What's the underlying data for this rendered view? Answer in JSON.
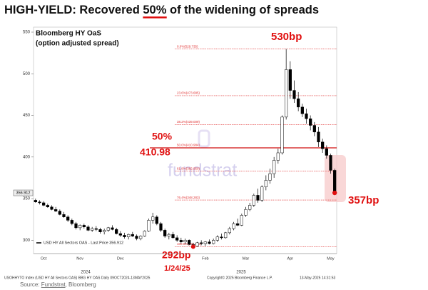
{
  "chart_data": {
    "type": "candlestick",
    "title": [
      "HIGH-YIELD: Recovered ",
      "50%",
      " of the widening of spreads"
    ],
    "subtitle": [
      "Bloomberg HY OaS",
      "(option adjusted spread)"
    ],
    "categories": [
      null,
      null,
      "Oct",
      null,
      null,
      null,
      null,
      null,
      null,
      null,
      null,
      "Nov",
      null,
      null,
      null,
      null,
      null,
      null,
      null,
      null,
      null,
      "Dec",
      null,
      null,
      null,
      null,
      null,
      null,
      null,
      null,
      null,
      null,
      null,
      null,
      null,
      null,
      null,
      null,
      null,
      null,
      null,
      null,
      "Feb",
      null,
      null,
      null,
      null,
      null,
      null,
      null,
      null,
      null,
      "Mar",
      null,
      null,
      null,
      null,
      null,
      null,
      null,
      null,
      null,
      null,
      "Apr",
      null,
      null,
      null,
      null,
      null,
      null,
      null,
      null,
      null,
      "May",
      null
    ],
    "year_labels": [
      "2024",
      "2025"
    ],
    "ohlc": [
      [
        348,
        350,
        345,
        346
      ],
      [
        346,
        348,
        343,
        345
      ],
      [
        345,
        347,
        341,
        342
      ],
      [
        342,
        344,
        339,
        340
      ],
      [
        340,
        342,
        336,
        337
      ],
      [
        337,
        340,
        334,
        335
      ],
      [
        335,
        337,
        330,
        331
      ],
      [
        331,
        334,
        327,
        328
      ],
      [
        328,
        330,
        322,
        324
      ],
      [
        324,
        326,
        318,
        320
      ],
      [
        320,
        322,
        313,
        315
      ],
      [
        315,
        319,
        312,
        318
      ],
      [
        318,
        320,
        314,
        316
      ],
      [
        316,
        318,
        311,
        312
      ],
      [
        312,
        316,
        310,
        314
      ],
      [
        314,
        317,
        311,
        313
      ],
      [
        313,
        315,
        308,
        310
      ],
      [
        310,
        314,
        307,
        312
      ],
      [
        312,
        316,
        310,
        315
      ],
      [
        315,
        318,
        312,
        313
      ],
      [
        313,
        315,
        307,
        308
      ],
      [
        308,
        311,
        304,
        306
      ],
      [
        306,
        309,
        302,
        304
      ],
      [
        304,
        308,
        301,
        307
      ],
      [
        307,
        310,
        304,
        305
      ],
      [
        305,
        307,
        300,
        302
      ],
      [
        302,
        306,
        300,
        305
      ],
      [
        305,
        312,
        304,
        311
      ],
      [
        311,
        326,
        310,
        324
      ],
      [
        324,
        333,
        320,
        328
      ],
      [
        328,
        330,
        318,
        320
      ],
      [
        320,
        322,
        310,
        312
      ],
      [
        312,
        314,
        303,
        305
      ],
      [
        305,
        309,
        301,
        307
      ],
      [
        307,
        310,
        302,
        303
      ],
      [
        303,
        306,
        298,
        300
      ],
      [
        300,
        303,
        296,
        298
      ],
      [
        298,
        302,
        295,
        300
      ],
      [
        300,
        301,
        294,
        295
      ],
      [
        295,
        297,
        292.233,
        293
      ],
      [
        293,
        298,
        292,
        297
      ],
      [
        297,
        300,
        294,
        296
      ],
      [
        296,
        299,
        293,
        298
      ],
      [
        298,
        301,
        295,
        296
      ],
      [
        296,
        302,
        295,
        300
      ],
      [
        300,
        306,
        298,
        304
      ],
      [
        304,
        308,
        301,
        303
      ],
      [
        303,
        310,
        302,
        309
      ],
      [
        309,
        316,
        307,
        314
      ],
      [
        314,
        322,
        312,
        320
      ],
      [
        320,
        326,
        317,
        318
      ],
      [
        318,
        332,
        317,
        330
      ],
      [
        330,
        340,
        328,
        337
      ],
      [
        337,
        345,
        335,
        342
      ],
      [
        342,
        356,
        340,
        354
      ],
      [
        354,
        362,
        345,
        348
      ],
      [
        348,
        366,
        346,
        364
      ],
      [
        364,
        378,
        360,
        372
      ],
      [
        372,
        386,
        368,
        380
      ],
      [
        380,
        400,
        375,
        396
      ],
      [
        396,
        410,
        392,
        405
      ],
      [
        405,
        450,
        403,
        448
      ],
      [
        448,
        529.735,
        445,
        505
      ],
      [
        505,
        515,
        470,
        480
      ],
      [
        480,
        492,
        465,
        470
      ],
      [
        470,
        478,
        455,
        460
      ],
      [
        460,
        464,
        448,
        452
      ],
      [
        452,
        458,
        440,
        446
      ],
      [
        446,
        450,
        432,
        438
      ],
      [
        438,
        442,
        425,
        430
      ],
      [
        430,
        436,
        412,
        418
      ],
      [
        418,
        422,
        405,
        410
      ],
      [
        410,
        414,
        398,
        402
      ],
      [
        402,
        404,
        380,
        384
      ],
      [
        384,
        386,
        355,
        356.912
      ]
    ],
    "up_color": "#ffffff",
    "down_color": "#000000",
    "ylim": [
      284,
      556
    ],
    "yticks": [
      300,
      350,
      400,
      450,
      500,
      550
    ],
    "grid": false,
    "last_price": 356.912,
    "legend": "USD HY All Sectors OAS - Last Price 356.912",
    "fib_color": "#e03030",
    "fib_levels": [
      {
        "value": 529.735,
        "label": "0.0%(529.735)"
      },
      {
        "value": 473.685,
        "label": "23.6%(473.685)"
      },
      {
        "value": 439.009,
        "label": "38.2%(439.009)"
      },
      {
        "value": 410.984,
        "label": "50.0%(410.984)"
      },
      {
        "value": 382.959,
        "label": "61.8%(382.959)"
      },
      {
        "value": 348.283,
        "label": "76.4%(348.283)"
      },
      {
        "value": 292.233,
        "label": "100.0%(292.233)"
      }
    ],
    "annotations": {
      "peak": "530bp",
      "half": "50%",
      "half_value": "410.98",
      "low": "292bp",
      "low_date": "1/24/25",
      "last": "357bp"
    },
    "watermark": "fundstrat",
    "footer": [
      "USOHHYTO Index (USD HY All Sectors OAS) BBG HY OAS  Daily 09OCT2024-13MAY2025",
      "Copyright© 2025 Bloomberg Finance L.P.",
      "13-May-2025 14:31:53"
    ],
    "source": [
      "Source: ",
      "Fundstrat",
      ", Bloomberg"
    ]
  }
}
